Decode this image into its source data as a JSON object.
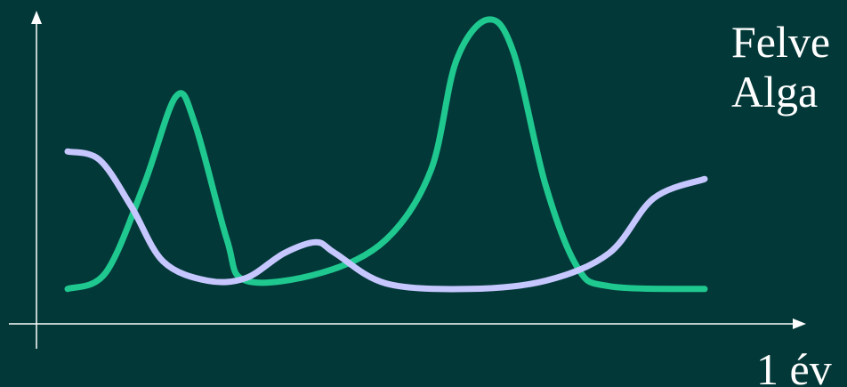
{
  "chart_data": {
    "type": "line",
    "xlabel": "1 év",
    "ylabel": "",
    "series": [
      {
        "name": "Felve",
        "color": "#1fc88f",
        "points": [
          [
            0.0,
            0.02
          ],
          [
            0.06,
            0.08
          ],
          [
            0.12,
            0.4
          ],
          [
            0.17,
            0.72
          ],
          [
            0.2,
            0.62
          ],
          [
            0.25,
            0.2
          ],
          [
            0.28,
            0.05
          ],
          [
            0.4,
            0.08
          ],
          [
            0.5,
            0.2
          ],
          [
            0.57,
            0.45
          ],
          [
            0.61,
            0.85
          ],
          [
            0.66,
            1.0
          ],
          [
            0.7,
            0.88
          ],
          [
            0.75,
            0.4
          ],
          [
            0.8,
            0.1
          ],
          [
            0.85,
            0.03
          ],
          [
            1.0,
            0.02
          ]
        ]
      },
      {
        "name": "Alga",
        "color": "#c6c7ff",
        "points": [
          [
            0.0,
            0.52
          ],
          [
            0.05,
            0.49
          ],
          [
            0.1,
            0.32
          ],
          [
            0.15,
            0.12
          ],
          [
            0.22,
            0.05
          ],
          [
            0.28,
            0.06
          ],
          [
            0.34,
            0.15
          ],
          [
            0.39,
            0.19
          ],
          [
            0.42,
            0.15
          ],
          [
            0.5,
            0.04
          ],
          [
            0.63,
            0.02
          ],
          [
            0.75,
            0.05
          ],
          [
            0.85,
            0.15
          ],
          [
            0.92,
            0.35
          ],
          [
            1.0,
            0.42
          ]
        ]
      }
    ]
  }
}
